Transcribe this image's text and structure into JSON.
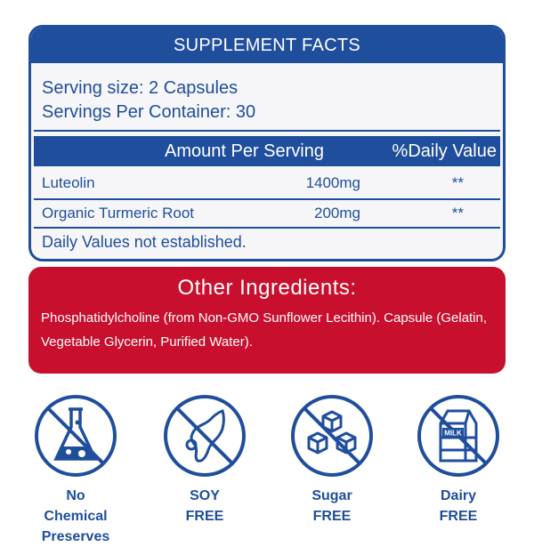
{
  "facts": {
    "title": "SUPPLEMENT FACTS",
    "serving_size": "Serving size: 2 Capsules",
    "servings_per_container": "Servings Per Container: 30",
    "columns": {
      "amount": "Amount Per Serving",
      "daily_value": "%Daily Value"
    },
    "rows": [
      {
        "name": "Luteolin",
        "amount": "1400mg",
        "dv": "**"
      },
      {
        "name": "Organic Turmeric Root",
        "amount": "200mg",
        "dv": "**"
      }
    ],
    "footnote": "Daily Values not established."
  },
  "other": {
    "title": "Other Ingredients:",
    "text": "Phosphatidylcholine (from Non-GMO Sunflower Lecithin). Capsule (Gelatin, Vegetable Glycerin, Purified Water)."
  },
  "badges": [
    {
      "icon": "no-chemical-flask-icon",
      "line1": "No Chemical",
      "line2": "Preserves"
    },
    {
      "icon": "no-soy-icon",
      "line1": "SOY",
      "line2": "FREE"
    },
    {
      "icon": "no-sugar-cubes-icon",
      "line1": "Sugar",
      "line2": "FREE"
    },
    {
      "icon": "no-dairy-milk-icon",
      "line1": "Dairy",
      "line2": "FREE",
      "milk_label": "MILK"
    }
  ],
  "colors": {
    "blue": "#1f4e9c",
    "red": "#c8102e",
    "panel": "#f6f6f8"
  }
}
